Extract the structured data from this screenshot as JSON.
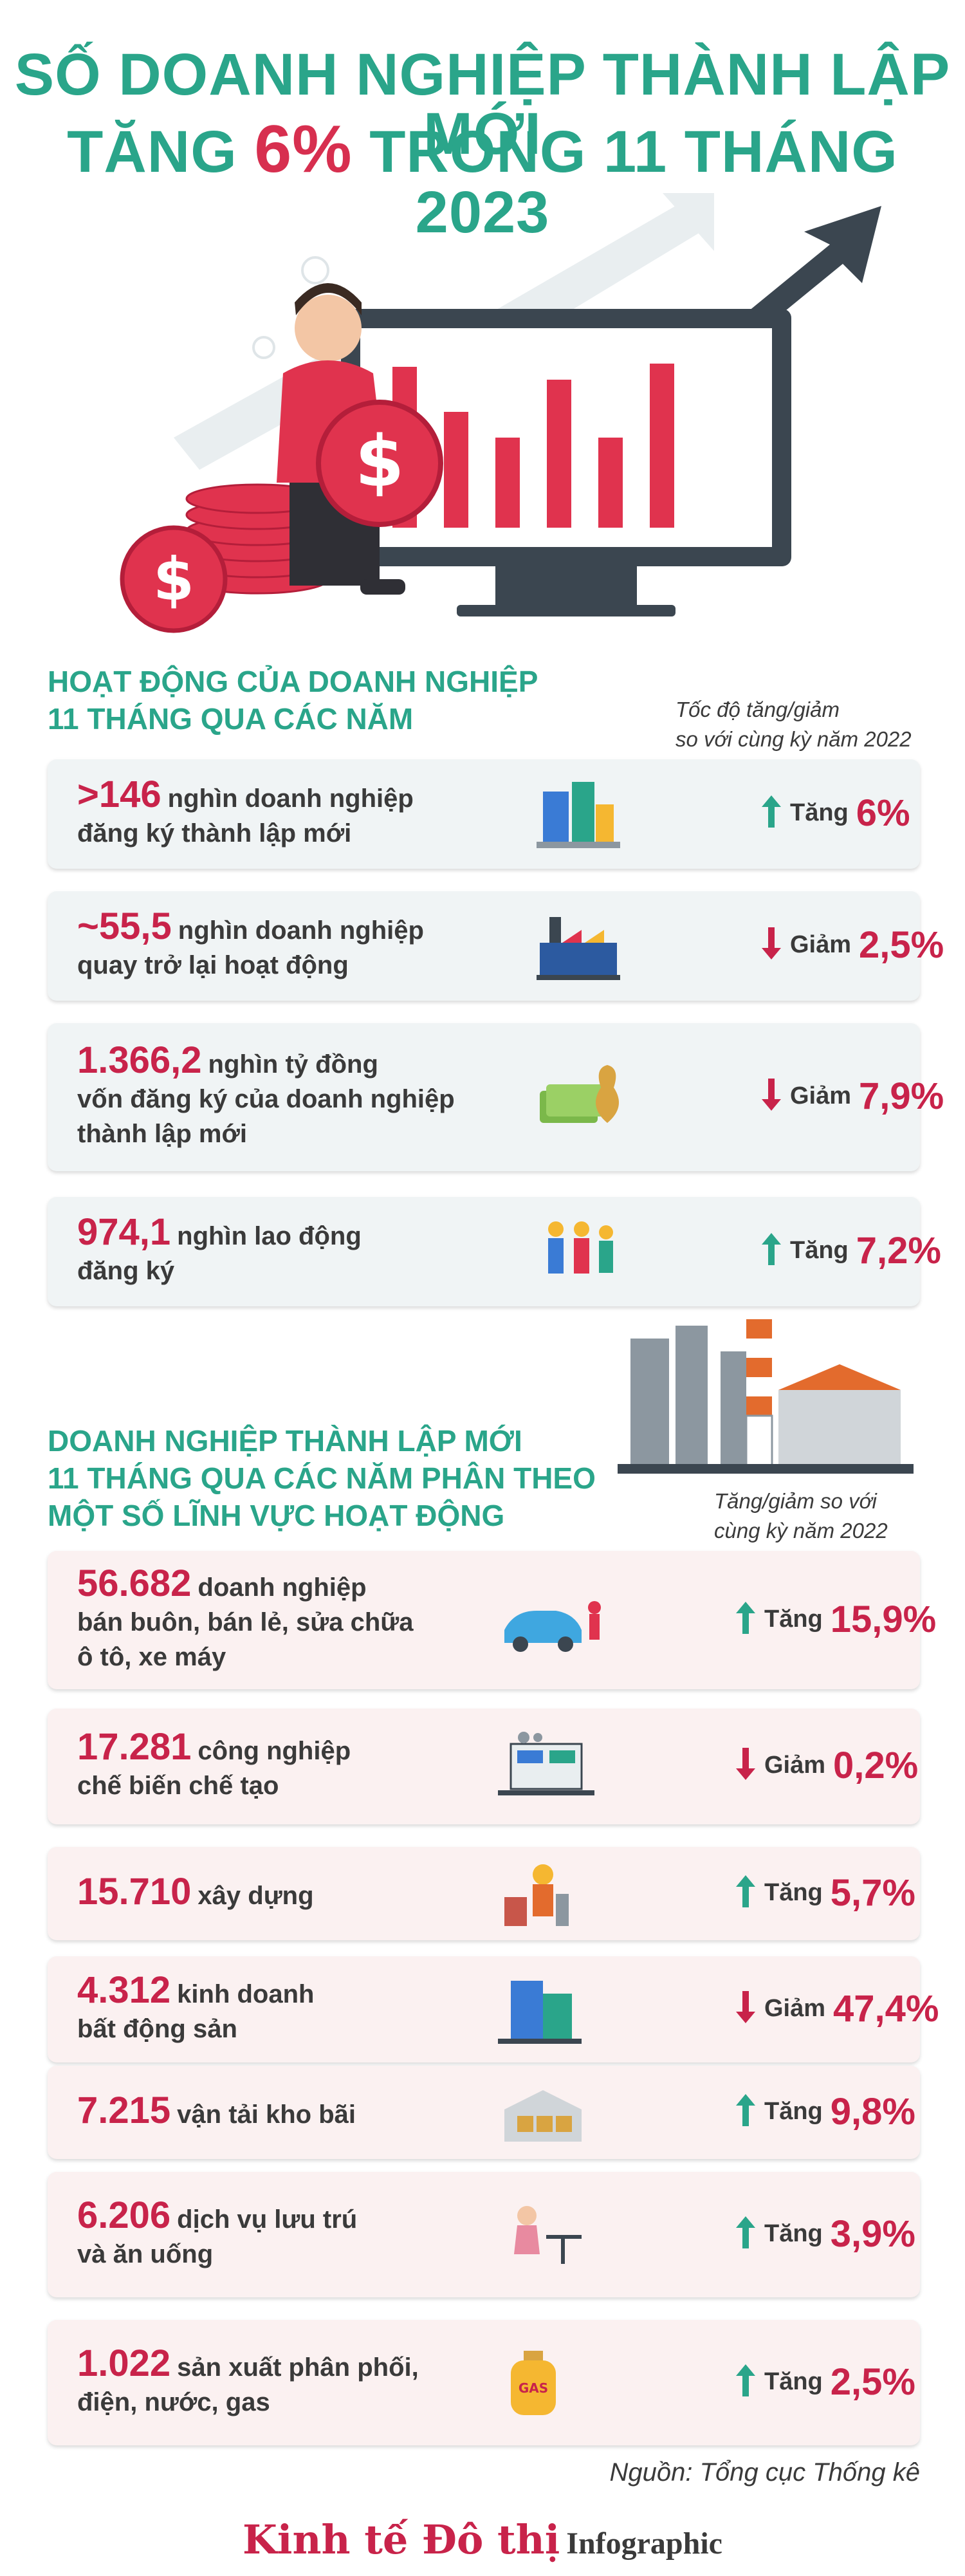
{
  "header": {
    "title_line1": "SỐ DOANH NGHIỆP THÀNH LẬP MỚI",
    "title_line2_pre": "TĂNG ",
    "title_line2_pct": "6%",
    "title_line2_post": " TRONG 11 THÁNG 2023"
  },
  "colors": {
    "accent_green": "#2aa58a",
    "accent_red": "#c8234a",
    "up_arrow": "#2aa58a",
    "down_arrow": "#c8234a"
  },
  "section1": {
    "title_line1": "HOẠT ĐỘNG CỦA DOANH NGHIỆP",
    "title_line2": "11 THÁNG QUA CÁC NĂM",
    "note_line1": "Tốc độ tăng/giảm",
    "note_line2": "so với cùng kỳ năm 2022",
    "items": [
      {
        "value": ">146",
        "text1": "nghìn doanh nghiệp",
        "text2": "đăng ký thành lập mới",
        "text3": "",
        "direction": "up",
        "change_label": "Tăng",
        "change_value": "6%",
        "icon": "office-buildings-icon"
      },
      {
        "value": "~55,5",
        "text1": "nghìn doanh nghiệp",
        "text2": "quay trở lại hoạt động",
        "text3": "",
        "direction": "down",
        "change_label": "Giảm",
        "change_value": "2,5%",
        "icon": "factory-icon"
      },
      {
        "value": "1.366,2",
        "text1": "nghìn tỷ đồng",
        "text2": "vốn đăng ký của doanh nghiệp",
        "text3": "thành lập mới",
        "direction": "down",
        "change_label": "Giảm",
        "change_value": "7,9%",
        "icon": "money-bag-icon"
      },
      {
        "value": "974,1",
        "text1": "nghìn lao động",
        "text2": "đăng ký",
        "text3": "",
        "direction": "up",
        "change_label": "Tăng",
        "change_value": "7,2%",
        "icon": "workers-icon"
      }
    ]
  },
  "section2": {
    "title_line1": "DOANH NGHIỆP THÀNH LẬP MỚI",
    "title_line2": "11 THÁNG QUA CÁC NĂM PHÂN THEO",
    "title_line3": "MỘT SỐ LĨNH VỰC HOẠT ĐỘNG",
    "note_line1": "Tăng/giảm so với",
    "note_line2": "cùng kỳ năm 2022",
    "items": [
      {
        "value": "56.682",
        "text1": "doanh nghiệp",
        "text2": "bán buôn, bán lẻ, sửa chữa",
        "text3": "ô tô, xe máy",
        "direction": "up",
        "change_label": "Tăng",
        "change_value": "15,9%",
        "icon": "car-repair-icon"
      },
      {
        "value": "17.281",
        "text1": "công nghiệp",
        "text2": "chế biến chế tạo",
        "text3": "",
        "direction": "down",
        "change_label": "Giảm",
        "change_value": "0,2%",
        "icon": "manufacturing-icon"
      },
      {
        "value": "15.710",
        "text1": "xây dựng",
        "text2": "",
        "text3": "",
        "direction": "up",
        "change_label": "Tăng",
        "change_value": "5,7%",
        "icon": "construction-worker-icon"
      },
      {
        "value": "4.312",
        "text1": "kinh doanh",
        "text2": "bất động sản",
        "text3": "",
        "direction": "down",
        "change_label": "Giảm",
        "change_value": "47,4%",
        "icon": "real-estate-building-icon"
      },
      {
        "value": "7.215",
        "text1": "vận tải kho bãi",
        "text2": "",
        "text3": "",
        "direction": "up",
        "change_label": "Tăng",
        "change_value": "9,8%",
        "icon": "warehouse-icon"
      },
      {
        "value": "6.206",
        "text1": "dịch vụ lưu trú",
        "text2": "và ăn uống",
        "text3": "",
        "direction": "up",
        "change_label": "Tăng",
        "change_value": "3,9%",
        "icon": "dining-icon"
      },
      {
        "value": "1.022",
        "text1": "sản xuất phân phối,",
        "text2": "điện, nước, gas",
        "text3": "",
        "direction": "up",
        "change_label": "Tăng",
        "change_value": "2,5%",
        "icon": "gas-cylinder-icon"
      }
    ]
  },
  "footer": {
    "source": "Nguồn: Tổng cục Thống kê",
    "brand": "Kinh tế Đô thị",
    "brand_suffix": "Infographic"
  }
}
